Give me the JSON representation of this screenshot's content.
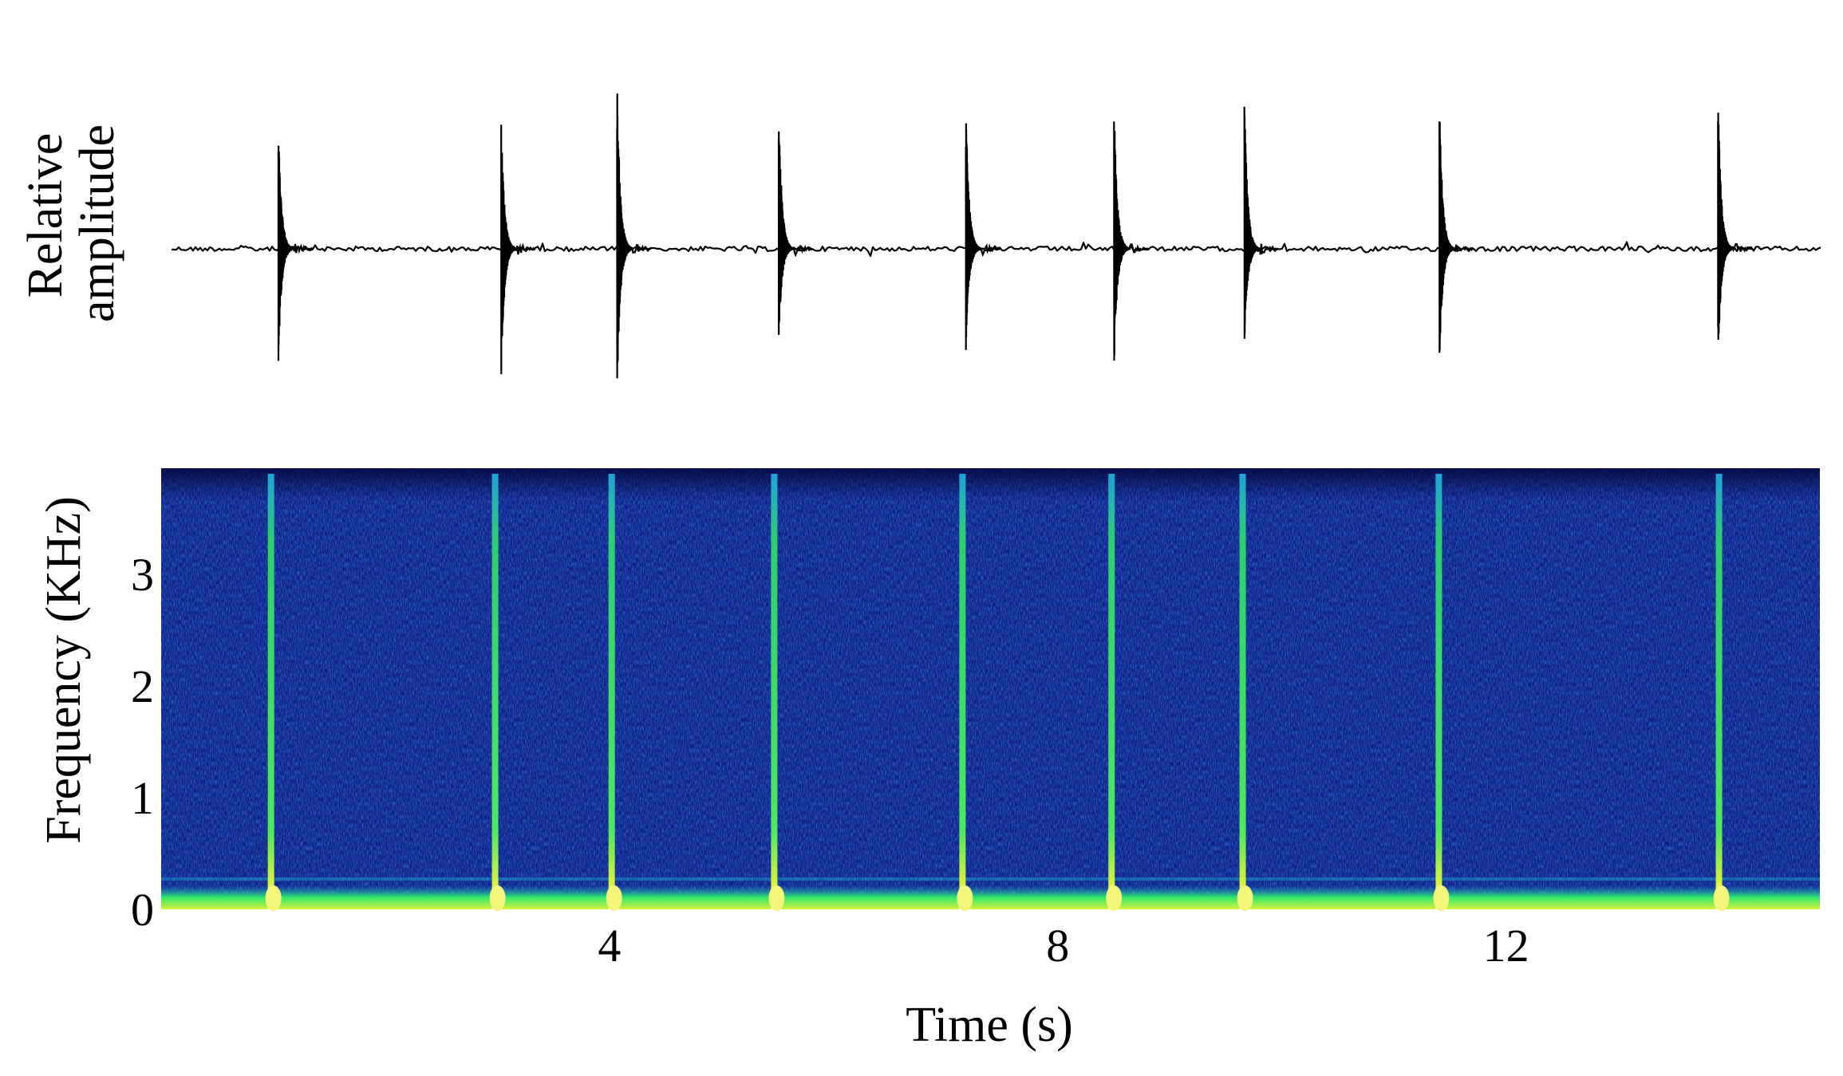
{
  "chart_data": [
    {
      "type": "line",
      "panel": "waveform",
      "ylabel": [
        "Relative",
        "amplitude"
      ],
      "xlim": [
        0,
        14.8
      ],
      "pulses": [
        {
          "t": 0.98,
          "pos": 0.75,
          "neg": 0.66
        },
        {
          "t": 2.98,
          "pos": 0.76,
          "neg": 0.75
        },
        {
          "t": 4.02,
          "pos": 1.0,
          "neg": 0.83
        },
        {
          "t": 5.47,
          "pos": 0.88,
          "neg": 0.55
        },
        {
          "t": 7.15,
          "pos": 0.85,
          "neg": 0.6
        },
        {
          "t": 8.48,
          "pos": 0.87,
          "neg": 0.68
        },
        {
          "t": 9.65,
          "pos": 0.9,
          "neg": 0.58
        },
        {
          "t": 11.4,
          "pos": 0.9,
          "neg": 0.68
        },
        {
          "t": 13.9,
          "pos": 0.93,
          "neg": 0.65
        }
      ]
    },
    {
      "type": "heatmap",
      "panel": "spectrogram",
      "ylabel": "Frequency (KHz)",
      "xlabel": "Time (s)",
      "xlim": [
        0,
        14.8
      ],
      "ylim": [
        0,
        3.95
      ],
      "xticks": [
        "4",
        "8",
        "12"
      ],
      "xtick_values": [
        4,
        8,
        12
      ],
      "yticks": [
        "0",
        "1",
        "2",
        "3"
      ],
      "ytick_values": [
        0,
        1,
        2,
        3
      ],
      "colormap": [
        "#0a0f6a",
        "#1438a8",
        "#1fa3d8",
        "#2ee86a",
        "#d8f23a",
        "#ffffd0"
      ],
      "call_times": [
        0.98,
        2.98,
        4.02,
        5.47,
        7.15,
        8.48,
        9.65,
        11.4,
        13.9
      ],
      "call_upper_khz": 3.9
    }
  ]
}
